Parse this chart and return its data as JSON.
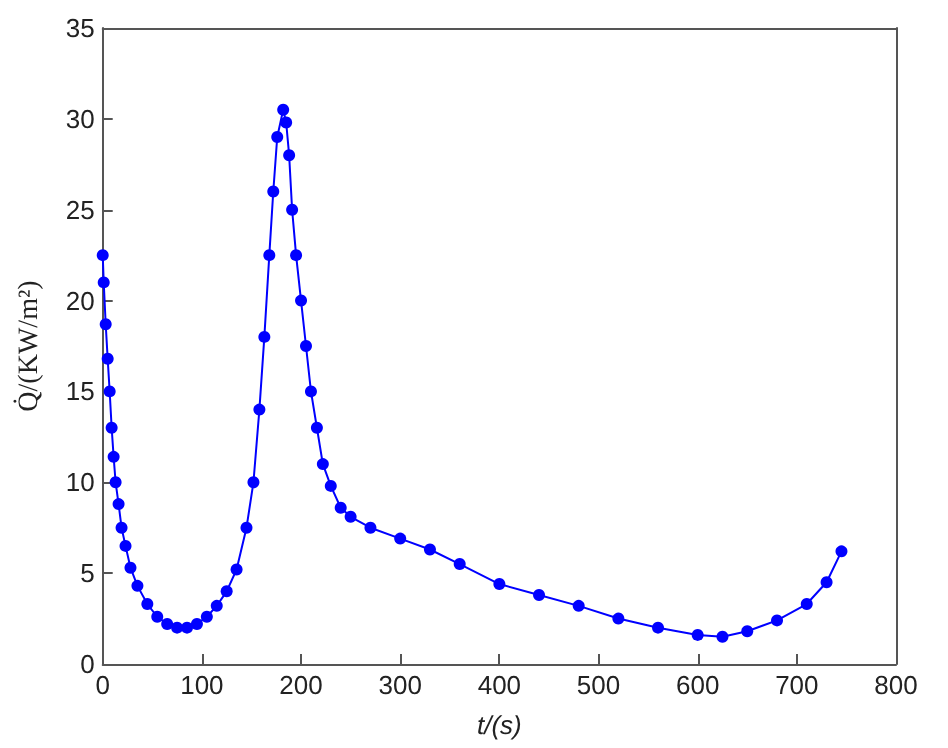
{
  "chart_data": {
    "type": "line",
    "xlabel": "t/(s)",
    "ylabel": "Q̇/(KW/m²)",
    "marker": "circle",
    "line_style": "solid",
    "grid": false,
    "xlim": [
      0,
      800
    ],
    "xticks": [
      0,
      100,
      200,
      300,
      400,
      500,
      600,
      700,
      800
    ],
    "ylim": [
      0,
      35
    ],
    "yticks": [
      0,
      5,
      10,
      15,
      20,
      25,
      30,
      35
    ],
    "series": [
      {
        "color": "#0000ff",
        "x": [
          0,
          1,
          3,
          5,
          7,
          9,
          11,
          13,
          16,
          19,
          23,
          28,
          35,
          45,
          55,
          65,
          75,
          85,
          95,
          105,
          115,
          125,
          135,
          145,
          152,
          158,
          163,
          168,
          172,
          176,
          182,
          185,
          188,
          191,
          195,
          200,
          205,
          210,
          216,
          222,
          230,
          240,
          250,
          270,
          300,
          330,
          360,
          400,
          440,
          480,
          520,
          560,
          600,
          625,
          650,
          680,
          710,
          730,
          745
        ],
        "values": [
          22.5,
          21,
          18.7,
          16.8,
          15,
          13,
          11.4,
          10,
          8.8,
          7.5,
          6.5,
          5.3,
          4.3,
          3.3,
          2.6,
          2.2,
          2,
          2,
          2.2,
          2.6,
          3.2,
          4,
          5.2,
          7.5,
          10,
          14,
          18,
          22.5,
          26,
          29,
          30.5,
          29.8,
          28,
          25,
          22.5,
          20,
          17.5,
          15,
          13,
          11,
          9.8,
          8.6,
          8.1,
          7.5,
          6.9,
          6.3,
          5.5,
          4.4,
          3.8,
          3.2,
          2.5,
          2,
          1.6,
          1.5,
          1.8,
          2.4,
          3.3,
          4.5,
          6.2
        ]
      }
    ]
  }
}
